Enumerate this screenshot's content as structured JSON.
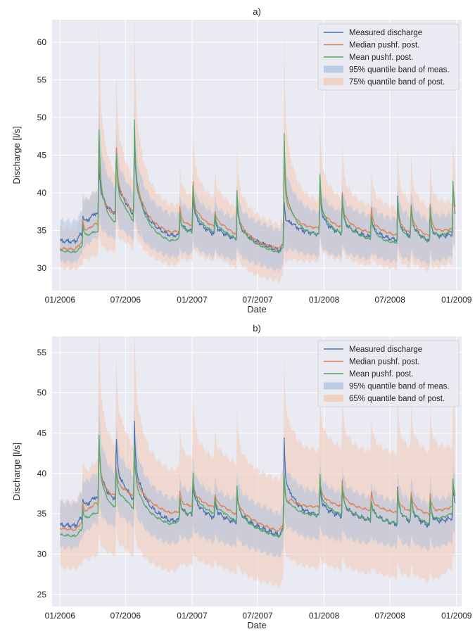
{
  "chart_data": [
    {
      "type": "line",
      "title": "a)",
      "xlabel": "Date",
      "ylabel": "Discharge [l/s]",
      "xlim": [
        "2005-12-10",
        "2009-01-15"
      ],
      "ylim": [
        27,
        63
      ],
      "x_ticks": [
        "01/2006",
        "07/2006",
        "01/2007",
        "07/2007",
        "01/2008",
        "07/2008",
        "01/2009"
      ],
      "y_ticks": [
        30,
        35,
        40,
        45,
        50,
        55,
        60
      ],
      "grid": true,
      "legend_position": "top-right",
      "colors": {
        "measured": "#4c72b0",
        "median": "#dd8452",
        "mean": "#55a868",
        "band_meas": "#aec2e0",
        "band_post": "#f2c9b3"
      },
      "events": [
        {
          "date": "2006-03-05",
          "measured": 2.4,
          "median": 2.8,
          "mean": 2.9,
          "band_up": 4.0
        },
        {
          "date": "2006-04-18",
          "measured": 8.0,
          "median": 12.3,
          "mean": 16.5,
          "band_up": 28.0
        },
        {
          "date": "2006-06-05",
          "measured": 9.8,
          "median": 10.6,
          "mean": 10.8,
          "band_up": 16.5
        },
        {
          "date": "2006-07-25",
          "measured": 11.6,
          "median": 12.6,
          "mean": 14.8,
          "band_up": 25.0
        },
        {
          "date": "2006-11-28",
          "measured": 3.2,
          "median": 3.6,
          "mean": 3.8,
          "band_up": 6.0
        },
        {
          "date": "2007-01-03",
          "measured": 5.8,
          "median": 6.2,
          "mean": 6.8,
          "band_up": 10.5
        },
        {
          "date": "2007-03-05",
          "measured": 2.4,
          "median": 2.5,
          "mean": 2.6,
          "band_up": 4.0
        },
        {
          "date": "2007-05-05",
          "measured": 5.6,
          "median": 5.7,
          "mean": 6.5,
          "band_up": 8.5
        },
        {
          "date": "2007-09-12",
          "measured": 6.2,
          "median": 12.5,
          "mean": 16.5,
          "band_up": 27.8
        },
        {
          "date": "2007-12-20",
          "measured": 7.0,
          "median": 6.0,
          "mean": 8.6,
          "band_up": 12.0
        },
        {
          "date": "2008-02-20",
          "measured": 4.4,
          "median": 4.6,
          "mean": 5.0,
          "band_up": 7.5
        },
        {
          "date": "2008-05-10",
          "measured": 3.5,
          "median": 3.8,
          "mean": 3.9,
          "band_up": 5.5
        },
        {
          "date": "2008-07-22",
          "measured": 5.8,
          "median": 4.6,
          "mean": 6.0,
          "band_up": 8.5
        },
        {
          "date": "2008-08-28",
          "measured": 4.2,
          "median": 4.4,
          "mean": 4.6,
          "band_up": 7.0
        },
        {
          "date": "2008-10-20",
          "measured": 4.0,
          "median": 4.2,
          "mean": 4.4,
          "band_up": 7.0
        },
        {
          "date": "2008-12-22",
          "measured": 5.8,
          "median": 5.0,
          "mean": 6.6,
          "band_up": 9.0
        }
      ],
      "series": [
        {
          "name": "Measured discharge",
          "x": [
            "2006-01-01",
            "2006-02-12",
            "2006-04-08",
            "2006-05-20",
            "2006-07-01",
            "2006-09-01",
            "2006-11-01",
            "2007-01-20",
            "2007-04-01",
            "2007-06-01",
            "2007-07-15",
            "2007-08-29",
            "2007-10-01",
            "2008-01-15",
            "2008-04-01",
            "2008-06-15",
            "2008-09-01",
            "2008-11-01",
            "2008-12-29"
          ],
          "values": [
            33.6,
            33.5,
            37.0,
            36.5,
            36.8,
            35.2,
            34.2,
            34.5,
            34.0,
            33.4,
            33.0,
            32.3,
            34.7,
            34.3,
            34.2,
            33.7,
            33.5,
            33.1,
            34.5
          ]
        },
        {
          "name": "Median pushf. post.",
          "x": [
            "2006-01-01",
            "2006-02-12",
            "2006-04-08",
            "2006-05-20",
            "2006-07-01",
            "2006-09-01",
            "2006-11-01",
            "2007-01-20",
            "2007-04-01",
            "2007-06-01",
            "2007-07-15",
            "2007-08-29",
            "2007-10-01",
            "2008-01-15",
            "2008-04-01",
            "2008-06-15",
            "2008-09-01",
            "2008-11-01",
            "2008-12-29"
          ],
          "values": [
            32.6,
            32.5,
            35.5,
            35.7,
            36.8,
            35.4,
            34.6,
            35.4,
            35.0,
            33.6,
            33.0,
            32.5,
            34.8,
            35.3,
            34.8,
            34.4,
            34.0,
            33.8,
            35.2
          ]
        },
        {
          "name": "Mean pushf. post.",
          "x": [
            "2006-01-01",
            "2006-02-12",
            "2006-04-08",
            "2006-05-20",
            "2006-07-01",
            "2006-09-01",
            "2006-11-01",
            "2007-01-20",
            "2007-04-01",
            "2007-06-01",
            "2007-07-15",
            "2007-08-29",
            "2007-10-01",
            "2008-01-15",
            "2008-04-01",
            "2008-06-15",
            "2008-09-01",
            "2008-11-01",
            "2008-12-29"
          ],
          "values": [
            32.3,
            32.1,
            34.5,
            34.2,
            35.6,
            34.3,
            33.4,
            34.6,
            34.3,
            33.1,
            32.6,
            32.0,
            34.1,
            34.3,
            34.0,
            33.2,
            33.2,
            33.0,
            35.0
          ]
        },
        {
          "name": "95% quantile band of meas.",
          "x": [
            "2006-01-01",
            "2006-02-12",
            "2006-04-08",
            "2006-05-20",
            "2006-07-01",
            "2006-09-01",
            "2006-11-01",
            "2007-01-20",
            "2007-04-01",
            "2007-06-01",
            "2007-07-15",
            "2007-08-29",
            "2007-10-01",
            "2008-01-15",
            "2008-04-01",
            "2008-06-15",
            "2008-09-01",
            "2008-11-01",
            "2008-12-29"
          ],
          "lower": [
            30.8,
            30.7,
            34.0,
            33.6,
            33.8,
            32.3,
            31.4,
            31.6,
            31.2,
            30.6,
            30.2,
            29.6,
            31.9,
            31.4,
            31.3,
            30.9,
            30.6,
            30.3,
            31.7
          ],
          "upper": [
            36.3,
            36.2,
            40.0,
            39.4,
            39.7,
            38.1,
            37.0,
            37.4,
            36.8,
            36.2,
            35.7,
            35.0,
            37.5,
            37.2,
            37.1,
            36.5,
            36.3,
            35.9,
            37.3
          ]
        },
        {
          "name": "75% quantile band of post.",
          "x": [
            "2006-01-01",
            "2006-02-12",
            "2006-04-08",
            "2006-05-20",
            "2006-07-01",
            "2006-09-01",
            "2006-11-01",
            "2007-01-20",
            "2007-04-01",
            "2007-06-01",
            "2007-07-15",
            "2007-08-29",
            "2007-10-01",
            "2008-01-15",
            "2008-04-01",
            "2008-06-15",
            "2008-09-01",
            "2008-11-01",
            "2008-12-29"
          ],
          "lower": [
            30.0,
            29.8,
            31.5,
            31.7,
            32.6,
            31.2,
            30.3,
            31.0,
            30.7,
            29.3,
            28.7,
            28.2,
            30.6,
            31.0,
            30.5,
            30.0,
            29.7,
            29.4,
            30.9
          ],
          "upper": [
            35.3,
            35.1,
            39.8,
            39.8,
            40.5,
            39.0,
            38.1,
            38.9,
            38.5,
            37.0,
            36.4,
            35.7,
            38.3,
            38.8,
            38.3,
            37.9,
            37.5,
            37.2,
            38.7
          ]
        }
      ]
    },
    {
      "type": "line",
      "title": "b)",
      "xlabel": "Date",
      "ylabel": "Discharge [l/s]",
      "xlim": [
        "2005-12-10",
        "2009-01-15"
      ],
      "ylim": [
        23.5,
        57
      ],
      "x_ticks": [
        "01/2006",
        "07/2006",
        "01/2007",
        "07/2007",
        "01/2008",
        "07/2008",
        "01/2009"
      ],
      "y_ticks": [
        25,
        30,
        35,
        40,
        45,
        50,
        55
      ],
      "grid": true,
      "legend_position": "top-right",
      "colors": {
        "measured": "#4c72b0",
        "median": "#dd8452",
        "mean": "#55a868",
        "band_meas": "#aec2e0",
        "band_post": "#f2c9b3"
      },
      "events": [
        {
          "date": "2006-03-05",
          "measured": 2.4,
          "median": 2.2,
          "mean": 2.6,
          "band_up": 4.0
        },
        {
          "date": "2006-04-18",
          "measured": 8.2,
          "median": 8.8,
          "mean": 11.8,
          "band_up": 21.0
        },
        {
          "date": "2006-06-05",
          "measured": 8.6,
          "median": 4.0,
          "mean": 5.2,
          "band_up": 13.0
        },
        {
          "date": "2006-07-25",
          "measured": 10.4,
          "median": 6.2,
          "mean": 8.6,
          "band_up": 18.0
        },
        {
          "date": "2006-11-28",
          "measured": 3.2,
          "median": 2.8,
          "mean": 3.2,
          "band_up": 6.0
        },
        {
          "date": "2007-01-03",
          "measured": 4.8,
          "median": 3.8,
          "mean": 5.6,
          "band_up": 9.5
        },
        {
          "date": "2007-03-05",
          "measured": 2.4,
          "median": 2.0,
          "mean": 2.2,
          "band_up": 4.0
        },
        {
          "date": "2007-05-05",
          "measured": 4.2,
          "median": 3.2,
          "mean": 4.4,
          "band_up": 7.0
        },
        {
          "date": "2007-09-12",
          "measured": 12.4,
          "median": 5.2,
          "mean": 7.6,
          "band_up": 16.5
        },
        {
          "date": "2007-12-20",
          "measured": 4.2,
          "median": 3.8,
          "mean": 5.4,
          "band_up": 8.0
        },
        {
          "date": "2008-02-20",
          "measured": 4.0,
          "median": 3.2,
          "mean": 3.6,
          "band_up": 6.5
        },
        {
          "date": "2008-05-10",
          "measured": 3.0,
          "median": 2.6,
          "mean": 2.8,
          "band_up": 5.0
        },
        {
          "date": "2008-07-22",
          "measured": 4.6,
          "median": 2.8,
          "mean": 4.0,
          "band_up": 7.0
        },
        {
          "date": "2008-08-28",
          "measured": 3.6,
          "median": 2.8,
          "mean": 3.2,
          "band_up": 6.0
        },
        {
          "date": "2008-10-20",
          "measured": 3.4,
          "median": 2.6,
          "mean": 3.0,
          "band_up": 6.0
        },
        {
          "date": "2008-12-22",
          "measured": 3.8,
          "median": 3.4,
          "mean": 4.2,
          "band_up": 8.0
        }
      ],
      "series": [
        {
          "name": "Measured discharge",
          "x": [
            "2006-01-01",
            "2006-02-12",
            "2006-04-08",
            "2006-05-20",
            "2006-07-01",
            "2006-09-01",
            "2006-11-01",
            "2007-01-20",
            "2007-04-01",
            "2007-06-01",
            "2007-07-15",
            "2007-08-29",
            "2007-10-01",
            "2008-01-15",
            "2008-04-01",
            "2008-06-15",
            "2008-09-01",
            "2008-11-01",
            "2008-12-29"
          ],
          "values": [
            33.6,
            33.5,
            36.8,
            36.0,
            36.5,
            35.0,
            34.0,
            34.6,
            34.0,
            33.5,
            33.0,
            32.3,
            34.8,
            34.6,
            34.3,
            33.8,
            33.4,
            33.1,
            34.5
          ]
        },
        {
          "name": "Median pushf. post.",
          "x": [
            "2006-01-01",
            "2006-02-12",
            "2006-04-08",
            "2006-05-20",
            "2006-07-01",
            "2006-09-01",
            "2006-11-01",
            "2007-01-20",
            "2007-04-01",
            "2007-06-01",
            "2007-07-15",
            "2007-08-29",
            "2007-10-01",
            "2008-01-15",
            "2008-04-01",
            "2008-06-15",
            "2008-09-01",
            "2008-11-01",
            "2008-12-29"
          ],
          "values": [
            33.2,
            33.0,
            36.0,
            36.2,
            37.0,
            36.0,
            35.0,
            35.8,
            35.4,
            34.2,
            33.5,
            32.8,
            35.6,
            35.9,
            35.5,
            35.2,
            34.9,
            34.6,
            35.9
          ]
        },
        {
          "name": "Mean pushf. post.",
          "x": [
            "2006-01-01",
            "2006-02-12",
            "2006-04-08",
            "2006-05-20",
            "2006-07-01",
            "2006-09-01",
            "2006-11-01",
            "2007-01-20",
            "2007-04-01",
            "2007-06-01",
            "2007-07-15",
            "2007-08-29",
            "2007-10-01",
            "2008-01-15",
            "2008-04-01",
            "2008-06-15",
            "2008-09-01",
            "2008-11-01",
            "2008-12-29"
          ],
          "values": [
            32.4,
            32.2,
            34.8,
            34.5,
            35.5,
            34.4,
            33.6,
            34.9,
            34.6,
            33.3,
            32.7,
            32.1,
            34.5,
            34.8,
            34.4,
            33.8,
            33.7,
            33.4,
            35.2
          ]
        },
        {
          "name": "95% quantile band of meas.",
          "x": [
            "2006-01-01",
            "2006-02-12",
            "2006-04-08",
            "2006-05-20",
            "2006-07-01",
            "2006-09-01",
            "2006-11-01",
            "2007-01-20",
            "2007-04-01",
            "2007-06-01",
            "2007-07-15",
            "2007-08-29",
            "2007-10-01",
            "2008-01-15",
            "2008-04-01",
            "2008-06-15",
            "2008-09-01",
            "2008-11-01",
            "2008-12-29"
          ],
          "lower": [
            30.8,
            30.7,
            33.8,
            33.0,
            33.5,
            32.1,
            31.2,
            31.7,
            31.1,
            30.6,
            30.2,
            29.6,
            31.9,
            31.7,
            31.4,
            31.0,
            30.6,
            30.3,
            31.6
          ],
          "upper": [
            36.4,
            36.3,
            39.8,
            39.0,
            39.5,
            37.9,
            36.8,
            37.5,
            36.9,
            36.4,
            35.8,
            35.0,
            37.7,
            37.5,
            37.2,
            36.6,
            36.2,
            35.9,
            37.4
          ]
        },
        {
          "name": "65% quantile band of post.",
          "x": [
            "2006-01-01",
            "2006-02-12",
            "2006-04-08",
            "2006-05-20",
            "2006-07-01",
            "2006-09-01",
            "2006-11-01",
            "2007-01-20",
            "2007-04-01",
            "2007-06-01",
            "2007-07-15",
            "2007-08-29",
            "2007-10-01",
            "2008-01-15",
            "2008-04-01",
            "2008-06-15",
            "2008-09-01",
            "2008-11-01",
            "2008-12-29"
          ],
          "lower": [
            28.3,
            28.2,
            29.6,
            29.5,
            29.8,
            28.6,
            27.8,
            28.6,
            28.0,
            27.0,
            26.5,
            26.0,
            28.2,
            28.2,
            27.7,
            27.2,
            26.8,
            26.3,
            28.6
          ],
          "upper": [
            36.6,
            36.5,
            41.0,
            41.4,
            42.4,
            41.2,
            40.2,
            41.4,
            41.4,
            40.4,
            39.8,
            39.2,
            42.2,
            42.9,
            42.6,
            42.4,
            42.2,
            42.0,
            43.2
          ]
        }
      ]
    }
  ]
}
